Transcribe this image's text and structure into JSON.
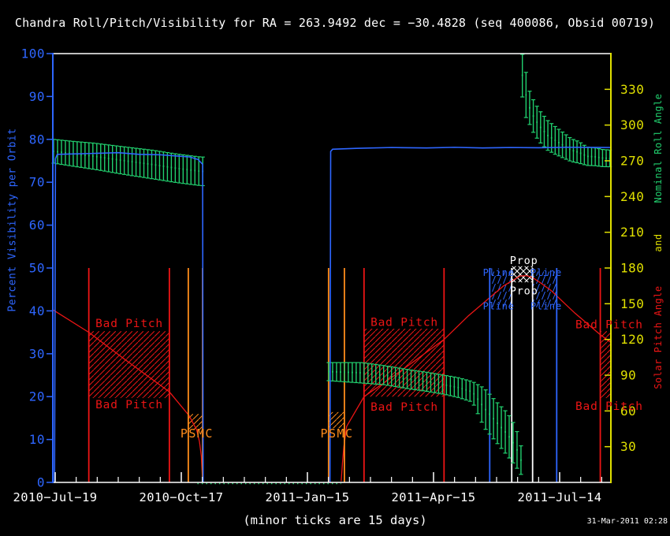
{
  "title": "Chandra Roll/Pitch/Visibility for RA = 263.9492 dec = −30.4828 (seq 400086, Obsid 00719)",
  "footer": "(minor ticks are 15 days)",
  "timestamp": "31-Mar-2011 02:28",
  "colors": {
    "background": "#000000",
    "visibility": "#2e66ff",
    "roll": "#21cf6e",
    "pitch": "#ed1515",
    "orange": "#ff8c1a",
    "axis_yellow": "#e0e000",
    "axis_white": "#ffffff"
  },
  "left_axis": {
    "label": "Percent Visibility per Orbit",
    "min": 0,
    "max": 100,
    "tick_step": 10
  },
  "right_axis": {
    "parts": [
      "Nominal Roll Angle",
      "and",
      "Solar Pitch Angle"
    ],
    "min": 0,
    "max": 360,
    "tick_step": 30,
    "first_label": 30,
    "last_label": 330
  },
  "x_axis": {
    "labels": [
      "2010−Jul−19",
      "2010−Oct−17",
      "2011−Jan−15",
      "2011−Apr−15",
      "2011−Jul−14"
    ],
    "label_days": [
      0,
      90,
      180,
      270,
      360
    ],
    "minor_step_days": 15
  },
  "chart_data": {
    "type": "line",
    "xlabel_note": "minor ticks are 15 days",
    "visibility_pct_segments": [
      [
        [
          -0.45,
          0
        ],
        [
          0.2,
          75.5
        ],
        [
          1.5,
          76.5
        ],
        [
          25,
          76.7
        ],
        [
          45,
          76.9
        ],
        [
          60,
          76.5
        ],
        [
          75,
          76.4
        ],
        [
          88,
          76.1
        ],
        [
          96,
          75.9
        ],
        [
          102,
          75.3
        ],
        [
          104,
          74.6
        ],
        [
          105.2,
          74.2
        ],
        [
          105.6,
          0
        ]
      ],
      [
        [
          196.1,
          0
        ],
        [
          196.6,
          77.2
        ],
        [
          198,
          77.7
        ],
        [
          215,
          77.9
        ],
        [
          240,
          78.1
        ],
        [
          265,
          78.0
        ],
        [
          285,
          78.15
        ],
        [
          305,
          78.0
        ],
        [
          325,
          78.1
        ],
        [
          345,
          78.05
        ],
        [
          365,
          78.15
        ],
        [
          396.5,
          78.1
        ]
      ]
    ],
    "solar_pitch_deg_segments": [
      [
        [
          -1.7,
          145
        ],
        [
          24,
          126
        ],
        [
          50,
          103
        ],
        [
          81.5,
          76
        ],
        [
          95.6,
          56
        ],
        [
          101,
          44
        ],
        [
          103,
          34
        ],
        [
          104.3,
          22
        ],
        [
          105.1,
          4
        ]
      ],
      [
        [
          204.1,
          1
        ],
        [
          205,
          16
        ],
        [
          206,
          30
        ],
        [
          208,
          47
        ],
        [
          220.4,
          72
        ],
        [
          240,
          88
        ],
        [
          253,
          99
        ],
        [
          277.5,
          120
        ],
        [
          295,
          140
        ],
        [
          308,
          153
        ],
        [
          320,
          165
        ],
        [
          331.6,
          173.2
        ],
        [
          336.2,
          173.6
        ],
        [
          340.6,
          172
        ],
        [
          347,
          167
        ],
        [
          354,
          161
        ],
        [
          362,
          152
        ],
        [
          371,
          142
        ],
        [
          380,
          133
        ],
        [
          389,
          124
        ],
        [
          396.6,
          117.5
        ]
      ]
    ],
    "nominal_roll_deg_segments": [
      {
        "bar_spacing_days": 2.8,
        "points": [
          [
            -1.1,
            278,
            10
          ],
          [
            12,
            276,
            10.4
          ],
          [
            28,
            273.8,
            11
          ],
          [
            50,
            270,
            11.6
          ],
          [
            70,
            266.8,
            12
          ],
          [
            85,
            264,
            12
          ],
          [
            96,
            262.3,
            12
          ],
          [
            103,
            261.3,
            12
          ],
          [
            107.8,
            261,
            12
          ]
        ]
      },
      {
        "bar_spacing_days": 2.8,
        "points": [
          [
            195.2,
            93,
            7.6
          ],
          [
            205,
            92.6,
            8
          ],
          [
            219,
            92,
            8.6
          ],
          [
            235,
            90,
            8
          ],
          [
            253,
            86.5,
            8
          ],
          [
            265,
            84.5,
            8
          ],
          [
            277.5,
            82,
            8
          ],
          [
            288,
            79.5,
            8.3
          ],
          [
            297.8,
            76,
            8.6
          ],
          [
            306.2,
            62.5,
            16.5
          ],
          [
            314.6,
            51,
            17
          ],
          [
            323,
            40,
            18
          ],
          [
            328.7,
            30,
            16.5
          ],
          [
            332.8,
            17.5,
            11.5
          ]
        ]
      },
      {
        "bar_spacing_days": 2.6,
        "points": [
          [
            333.4,
            341.8,
            18.2
          ],
          [
            335.6,
            327,
            19.8
          ],
          [
            338.4,
            315,
            14
          ],
          [
            341.8,
            306,
            13.6
          ],
          [
            345.7,
            299,
            13.2
          ],
          [
            351.3,
            291.5,
            12.5
          ],
          [
            357,
            287,
            11.6
          ],
          [
            362.6,
            283,
            10.6
          ],
          [
            368.2,
            279,
            9.6
          ],
          [
            373.9,
            277,
            9
          ],
          [
            379.5,
            273.8,
            7.7
          ],
          [
            385.1,
            273.4,
            7.5
          ],
          [
            390.7,
            272.3,
            7.2
          ],
          [
            396.4,
            272,
            7
          ]
        ]
      }
    ],
    "roll_zero_baseline_days": [
      101.5,
      204
    ],
    "constraint_lines": [
      {
        "day": 24,
        "color": "pitch"
      },
      {
        "day": 81.5,
        "color": "pitch"
      },
      {
        "day": 220.4,
        "color": "pitch"
      },
      {
        "day": 277.5,
        "color": "pitch"
      },
      {
        "day": 389,
        "color": "pitch"
      },
      {
        "day": 95,
        "color": "orange"
      },
      {
        "day": 105.2,
        "color": "orange"
      },
      {
        "day": 195.1,
        "color": "orange"
      },
      {
        "day": 206.4,
        "color": "orange"
      },
      {
        "day": 310.1,
        "color": "visibility"
      },
      {
        "day": 357.9,
        "color": "visibility"
      },
      {
        "day": 325.8,
        "color": "axis_white"
      },
      {
        "day": 340.7,
        "color": "axis_white"
      }
    ],
    "hatch_regions": [
      {
        "day1": 24,
        "day2": 81.5,
        "deg1": 70.8,
        "deg2": 127,
        "color": "pitch",
        "pattern": "diag"
      },
      {
        "day1": 220.4,
        "day2": 277.5,
        "deg1": 72,
        "deg2": 129,
        "color": "pitch",
        "pattern": "diag"
      },
      {
        "day1": 389,
        "day2": 396.6,
        "deg1": 70.8,
        "deg2": 127,
        "color": "pitch",
        "pattern": "diag"
      },
      {
        "day1": 95,
        "day2": 105.2,
        "deg1": 44,
        "deg2": 57.5,
        "color": "orange",
        "pattern": "diag"
      },
      {
        "day1": 195.1,
        "day2": 206.4,
        "deg1": 45.5,
        "deg2": 59,
        "color": "orange",
        "pattern": "diag"
      },
      {
        "day1": 310.1,
        "day2": 325.8,
        "deg1": 147,
        "deg2": 177,
        "color": "visibility",
        "pattern": "steep"
      },
      {
        "day1": 340.7,
        "day2": 357.9,
        "deg1": 147,
        "deg2": 177,
        "color": "visibility",
        "pattern": "steep"
      },
      {
        "day1": 325.8,
        "day2": 340.7,
        "deg1": 168,
        "deg2": 181.5,
        "color": "axis_white",
        "pattern": "cross"
      }
    ],
    "annotations": [
      {
        "text": "Bad Pitch",
        "day": 52.9,
        "deg": 133,
        "color": "pitch",
        "size": 14.5
      },
      {
        "text": "Bad Pitch",
        "day": 52.9,
        "deg": 65,
        "color": "pitch",
        "size": 14.5
      },
      {
        "text": "Bad Pitch",
        "day": 249.2,
        "deg": 134,
        "color": "pitch",
        "size": 14.5
      },
      {
        "text": "Bad Pitch",
        "day": 249.2,
        "deg": 63,
        "color": "pitch",
        "size": 14.5
      },
      {
        "text": "Bad Pitch",
        "day": 395.4,
        "deg": 132,
        "color": "pitch",
        "size": 14.5
      },
      {
        "text": "Bad Pitch",
        "day": 395.4,
        "deg": 63.5,
        "color": "pitch",
        "size": 14.5
      },
      {
        "text": "PSMC",
        "day": 101.2,
        "deg": 41,
        "color": "orange",
        "size": 15
      },
      {
        "text": "PSMC",
        "day": 201.1,
        "deg": 41,
        "color": "orange",
        "size": 15
      },
      {
        "text": "Pline",
        "day": 316.5,
        "deg": 176,
        "color": "visibility",
        "size": 12
      },
      {
        "text": "Pline",
        "day": 350.4,
        "deg": 176,
        "color": "visibility",
        "size": 12
      },
      {
        "text": "Pline",
        "day": 316.5,
        "deg": 148,
        "color": "visibility",
        "size": 12
      },
      {
        "text": "Pline",
        "day": 350.4,
        "deg": 148,
        "color": "visibility",
        "size": 12
      },
      {
        "text": "Prop",
        "day": 334.5,
        "deg": 186,
        "color": "axis_white",
        "size": 13.5
      },
      {
        "text": "Prop",
        "day": 334.5,
        "deg": 160.5,
        "color": "axis_white",
        "size": 13.5
      }
    ]
  }
}
